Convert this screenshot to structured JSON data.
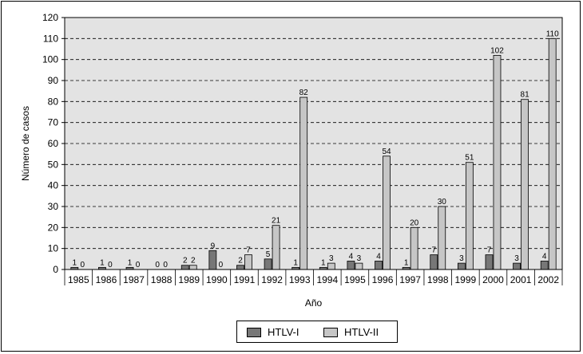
{
  "chart_data": {
    "type": "bar",
    "categories": [
      "1985",
      "1986",
      "1987",
      "1988",
      "1989",
      "1990",
      "1991",
      "1992",
      "1993",
      "1994",
      "1995",
      "1996",
      "1997",
      "1998",
      "1999",
      "2000",
      "2001",
      "2002"
    ],
    "series": [
      {
        "name": "HTLV-I",
        "values": [
          1,
          1,
          1,
          0,
          2,
          9,
          2,
          5,
          1,
          1,
          4,
          4,
          1,
          7,
          3,
          7,
          3,
          4
        ],
        "color": "#777777"
      },
      {
        "name": "HTLV-II",
        "values": [
          0,
          0,
          0,
          0,
          2,
          0,
          7,
          21,
          82,
          3,
          3,
          54,
          20,
          30,
          51,
          102,
          81,
          110
        ],
        "color": "#c6c6c6"
      }
    ],
    "title": "",
    "xlabel": "Año",
    "ylabel": "Número de casos",
    "ylim": [
      0,
      120
    ],
    "yticks": [
      0,
      10,
      20,
      30,
      40,
      50,
      60,
      70,
      80,
      90,
      100,
      110,
      120
    ],
    "plot_background": "#e3e3e3",
    "grid": "horizontal dashed",
    "legend_position": "bottom-center"
  }
}
